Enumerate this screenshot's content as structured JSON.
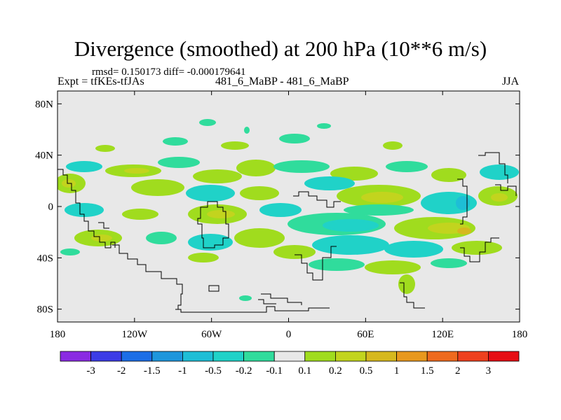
{
  "header": {
    "title": "Divergence (smoothed) at 200 hPa (10**6 m/s)",
    "stats": "rmsd= 0.150173 diff= -0.000179641",
    "experiment": "Expt = tfKEs-tfJAs",
    "runs": "481_6_MaBP - 481_6_MaBP",
    "season": "JJA"
  },
  "map": {
    "lat_ticks": [
      {
        "value": 80,
        "label": "80N"
      },
      {
        "value": 40,
        "label": "40N"
      },
      {
        "value": 0,
        "label": "0"
      },
      {
        "value": -40,
        "label": "40S"
      },
      {
        "value": -80,
        "label": "80S"
      }
    ],
    "lon_ticks": [
      {
        "value": -180,
        "label": "180"
      },
      {
        "value": -120,
        "label": "120W"
      },
      {
        "value": -60,
        "label": "60W"
      },
      {
        "value": 0,
        "label": "0"
      },
      {
        "value": 60,
        "label": "60E"
      },
      {
        "value": 120,
        "label": "120E"
      },
      {
        "value": 180,
        "label": "180"
      }
    ],
    "lat_range": [
      -90,
      90
    ],
    "lon_range": [
      -180,
      180
    ],
    "background_color": "#e8e8e8"
  },
  "colorbar": {
    "colors": [
      "#8a2be2",
      "#3c3ce6",
      "#1c6ee6",
      "#1e96dc",
      "#1ebed6",
      "#20d2c8",
      "#30dc9c",
      "#e8e8e8",
      "#a0dc1e",
      "#c2d41e",
      "#d6b81e",
      "#e8981e",
      "#ee6a1e",
      "#ee401e",
      "#e60e14"
    ],
    "labels": [
      "-3",
      "-2",
      "-1.5",
      "-1",
      "-0.5",
      "-0.2",
      "-0.1",
      "0.1",
      "0.2",
      "0.5",
      "1",
      "1.5",
      "2",
      "3"
    ]
  }
}
